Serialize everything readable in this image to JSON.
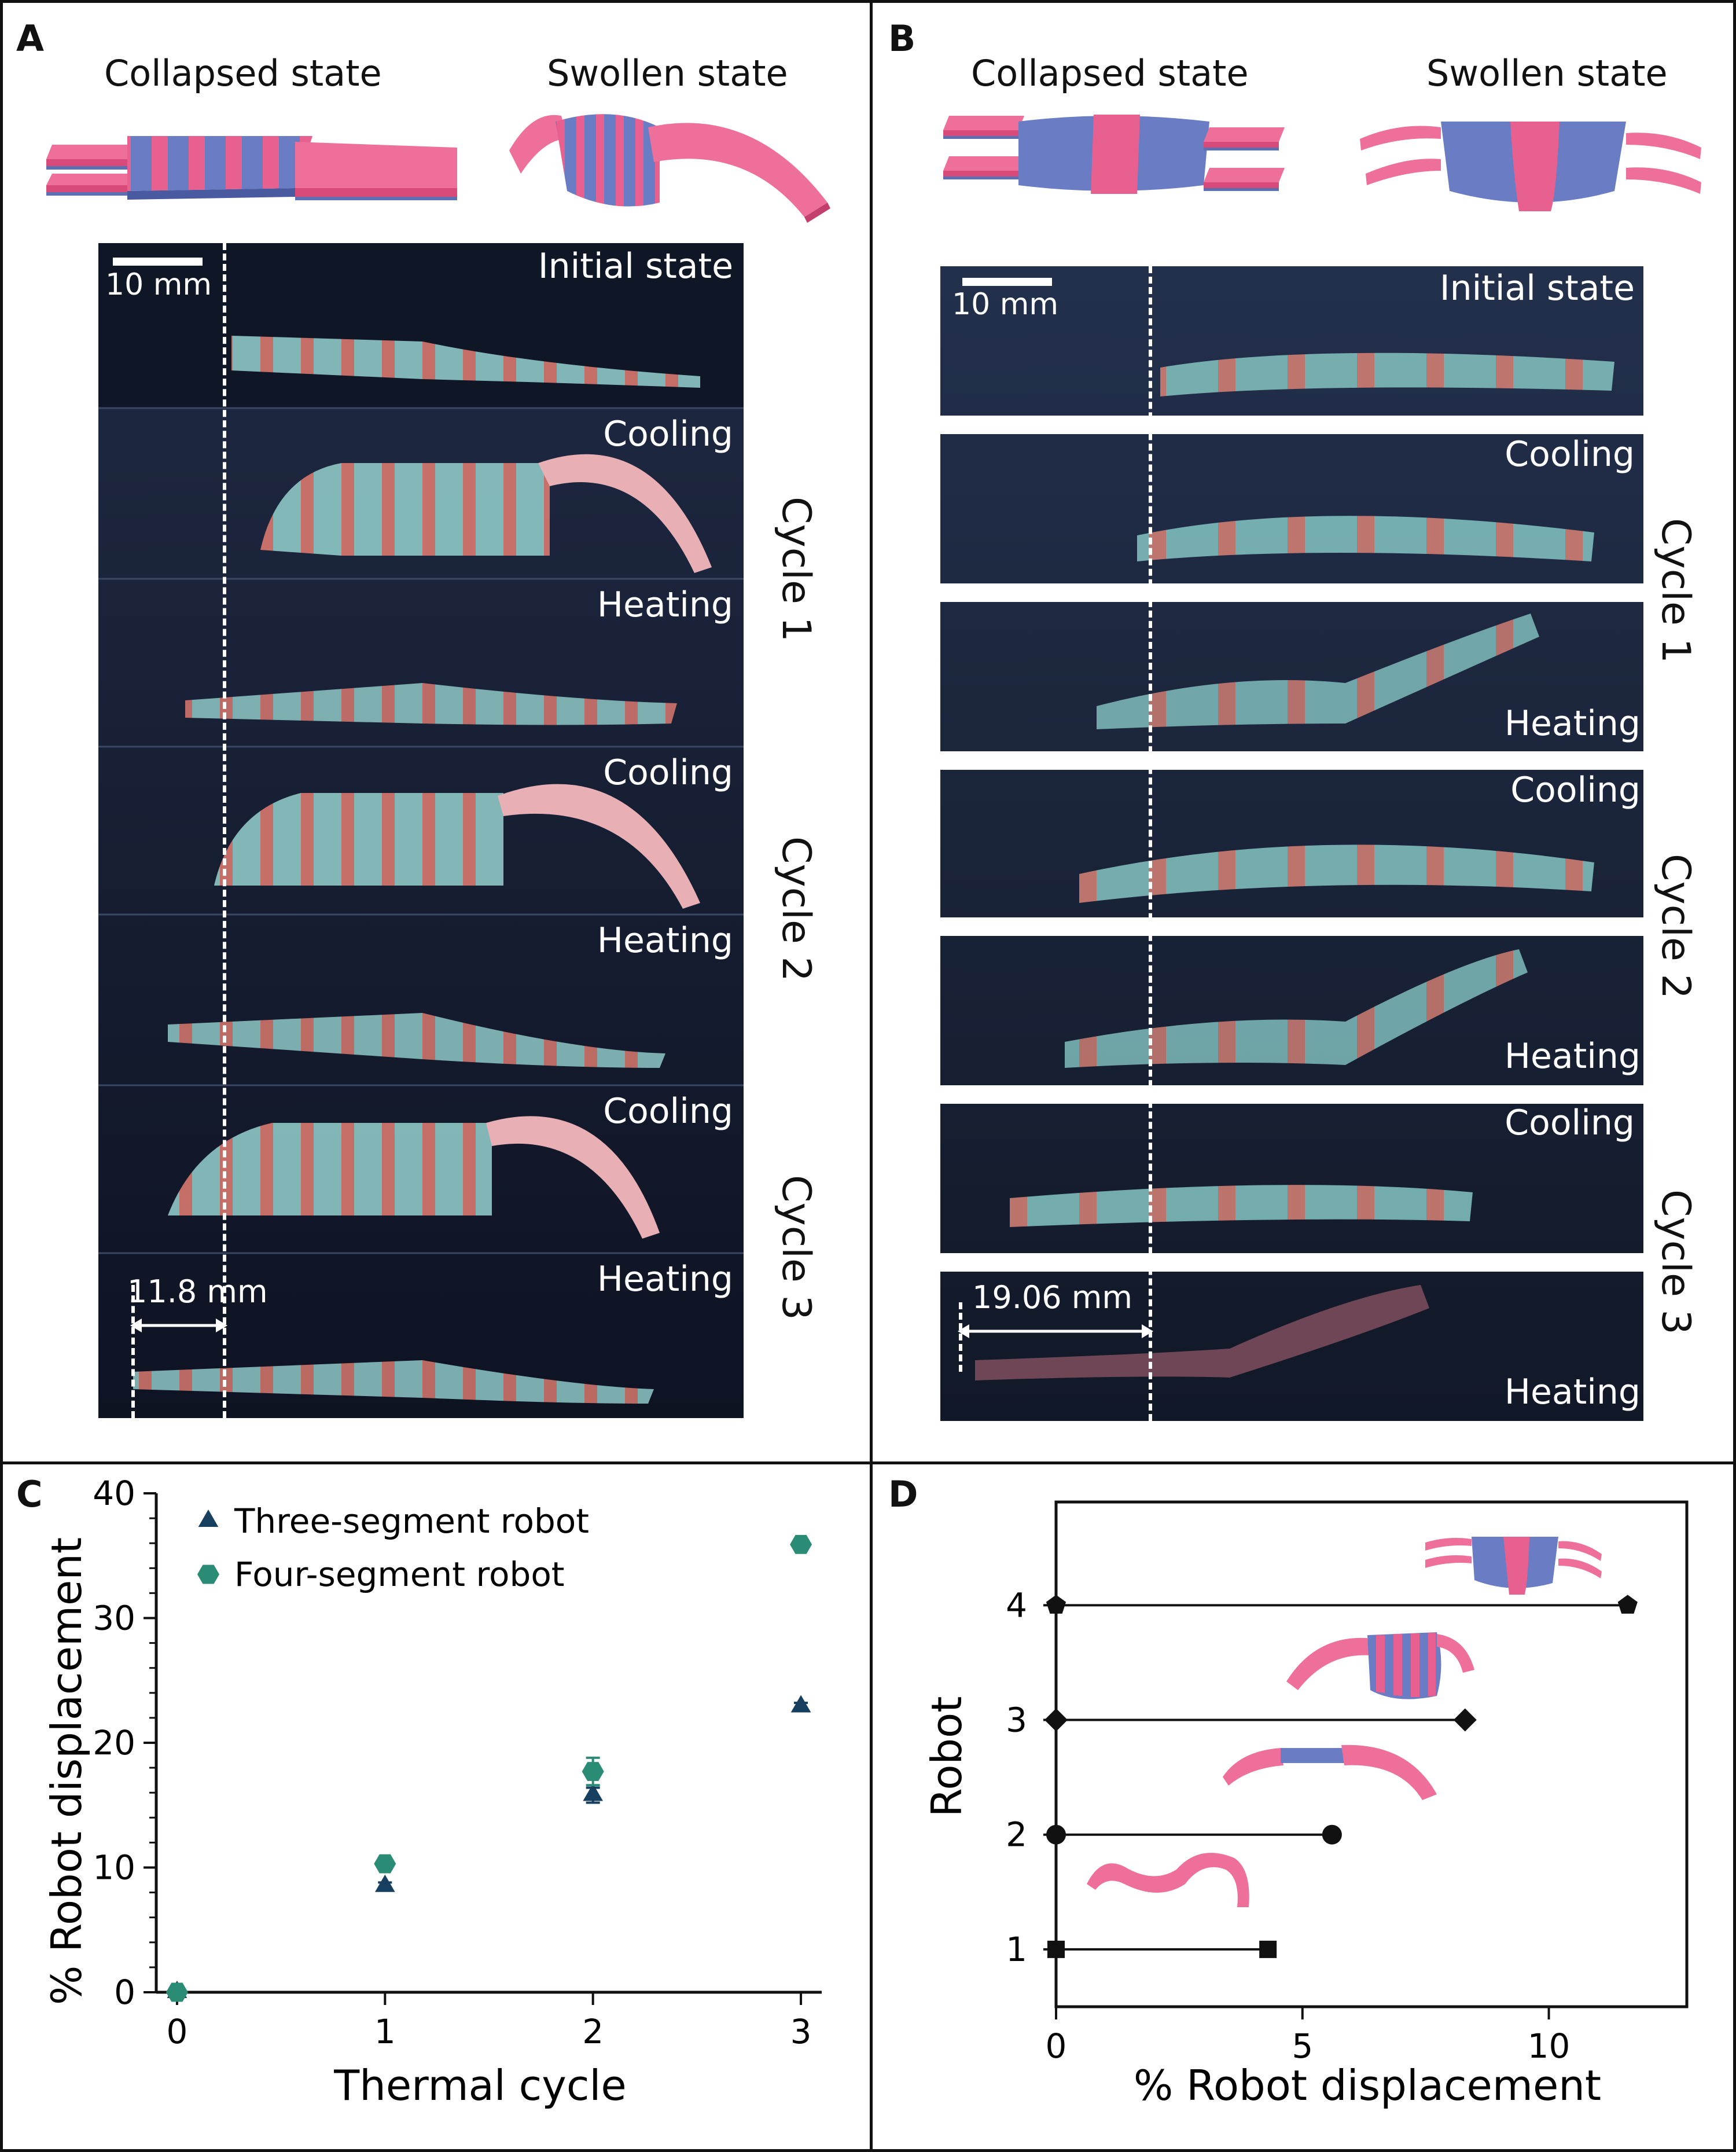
{
  "panels": {
    "A": {
      "label": "A",
      "collapsed_title": "Collapsed state",
      "swollen_title": "Swollen state",
      "scale_bar": "10 mm",
      "frames": [
        "Initial state",
        "Cooling",
        "Heating",
        "Cooling",
        "Heating",
        "Cooling",
        "Heating"
      ],
      "cycles": [
        "Cycle 1",
        "Cycle 2",
        "Cycle 3"
      ],
      "measurement": "11.8 mm"
    },
    "B": {
      "label": "B",
      "collapsed_title": "Collapsed state",
      "swollen_title": "Swollen state",
      "scale_bar": "10 mm",
      "frames": [
        "Initial state",
        "Cooling",
        "Heating",
        "Cooling",
        "Heating",
        "Cooling",
        "Heating"
      ],
      "cycles": [
        "Cycle 1",
        "Cycle 2",
        "Cycle 3"
      ],
      "measurement": "19.06 mm"
    },
    "C": {
      "label": "C"
    },
    "D": {
      "label": "D"
    }
  },
  "chart_data": [
    {
      "panel": "C",
      "type": "scatter",
      "xlabel": "Thermal cycle",
      "ylabel": "% Robot displacement",
      "xlim": [
        -0.1,
        3.1
      ],
      "ylim": [
        0,
        40
      ],
      "xticks": [
        "0",
        "1",
        "2",
        "3"
      ],
      "yticks": [
        "0",
        "10",
        "20",
        "30",
        "40"
      ],
      "legend_position": "top-left",
      "series": [
        {
          "name": "Three-segment robot",
          "marker": "triangle",
          "color": "#173f5f",
          "x": [
            0,
            1,
            2,
            3
          ],
          "y": [
            0,
            8.5,
            15.8,
            22.9
          ],
          "err": [
            0,
            0.3,
            0.6,
            0.3
          ]
        },
        {
          "name": "Four-segment robot",
          "marker": "hexagon",
          "color": "#2a8c74",
          "x": [
            0,
            1,
            2,
            3
          ],
          "y": [
            0,
            10.3,
            17.7,
            35.9
          ],
          "err": [
            0,
            0.3,
            1.1,
            0.4
          ]
        }
      ]
    },
    {
      "panel": "D",
      "type": "bar",
      "orientation": "horizontal",
      "xlabel": "% Robot displacement",
      "ylabel": "Robot",
      "xlim": [
        0,
        12.8
      ],
      "ylim": [
        0.5,
        4.9
      ],
      "xticks": [
        "0",
        "5",
        "10"
      ],
      "categories": [
        "1",
        "2",
        "3",
        "4"
      ],
      "values": [
        4.3,
        5.6,
        8.3,
        11.6
      ],
      "markers": [
        "square",
        "circle",
        "diamond",
        "pentagon"
      ]
    }
  ]
}
